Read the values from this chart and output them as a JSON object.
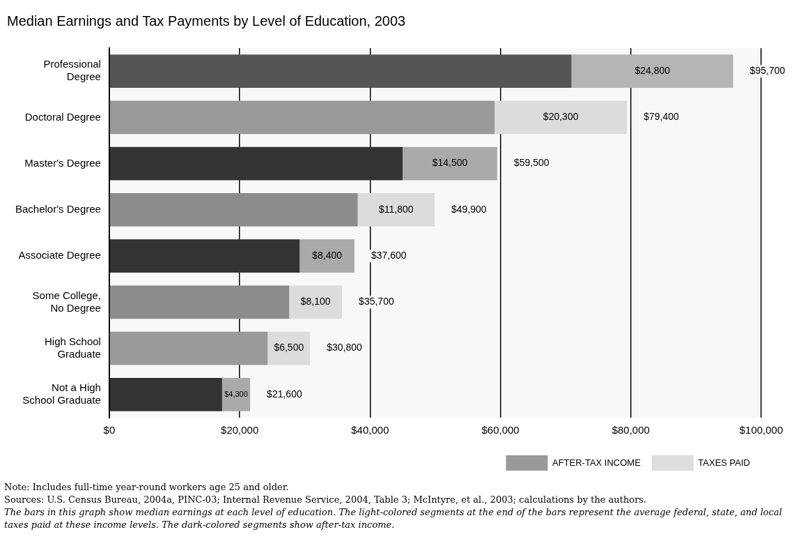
{
  "chart_data": {
    "type": "bar",
    "orientation": "horizontal",
    "stacked": true,
    "title": "Median Earnings and Tax Payments by Level of Education, 2003",
    "categories": [
      "Professional Degree",
      "Doctoral Degree",
      "Master's Degree",
      "Bachelor's Degree",
      "Associate Degree",
      "Some College, No Degree",
      "High School Graduate",
      "Not a High School Graduate"
    ],
    "series": [
      {
        "name": "AFTER-TAX INCOME",
        "color": "#999999",
        "colors": [
          "#555555",
          "#999999",
          "#333333",
          "#8c8c8c",
          "#333333",
          "#8c8c8c",
          "#9a9a9a",
          "#333333"
        ],
        "values": [
          70900,
          59100,
          45000,
          38100,
          29200,
          27600,
          24300,
          17300
        ]
      },
      {
        "name": "TAXES PAID",
        "color": "#dddddd",
        "colors": [
          "#b5b5b5",
          "#dcdcdc",
          "#aaaaaa",
          "#dcdcdc",
          "#aaaaaa",
          "#dcdcdc",
          "#dcdcdc",
          "#aaaaaa"
        ],
        "values": [
          24800,
          20300,
          14500,
          11800,
          8400,
          8100,
          6500,
          4300
        ],
        "value_labels": [
          "$24,800",
          "$20,300",
          "$14,500",
          "$11,800",
          "$8,400",
          "$8,100",
          "$6,500",
          "$4,300"
        ]
      }
    ],
    "totals": [
      "$95,700",
      "$79,400",
      "$59,500",
      "$49,900",
      "$37,600",
      "$35,700",
      "$30,800",
      "$21,600"
    ],
    "xlim": [
      0,
      100000
    ],
    "xticks": [
      {
        "value": 0,
        "label": "$0"
      },
      {
        "value": 20000,
        "label": "$20,000"
      },
      {
        "value": 40000,
        "label": "$40,000"
      },
      {
        "value": 60000,
        "label": "$60,000"
      },
      {
        "value": 80000,
        "label": "$80,000"
      },
      {
        "value": 100000,
        "label": "$100,000"
      }
    ],
    "grid": "x",
    "legend": "bottom right",
    "annotations": [
      "Note: Includes full-time year-round workers age 25 and older.",
      "Sources: U.S. Census Bureau, 2004a, PINC-03; Internal Revenue Service, 2004, Table 3; McIntyre, et al., 2003; calculations by the authors.",
      "The bars in this graph show median earnings at each level of education. The light-colored segments at the end of the bars represent the average federal, state, and local taxes paid at these income levels. The dark-colored segments show after-tax income."
    ]
  }
}
